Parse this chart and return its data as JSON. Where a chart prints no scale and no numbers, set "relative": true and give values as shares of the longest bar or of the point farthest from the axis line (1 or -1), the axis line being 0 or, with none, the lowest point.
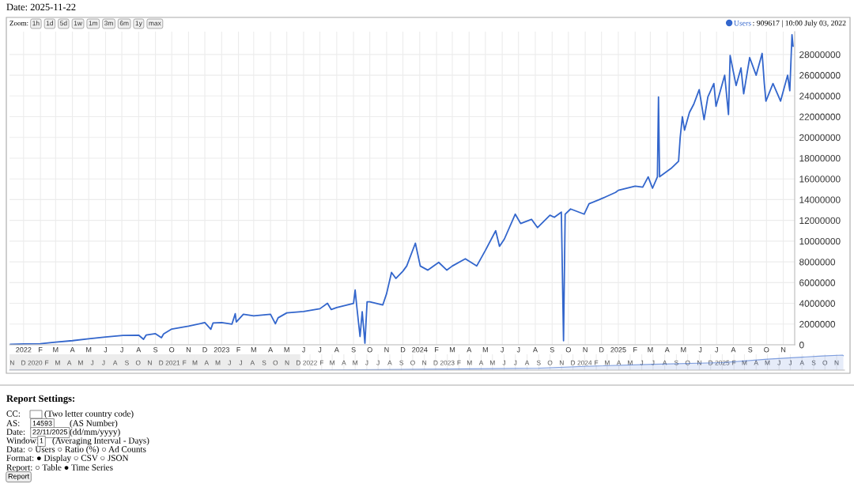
{
  "chart_data": [
    {
      "type": "line",
      "title": "Date: 2025-11-22",
      "x": [
        "2021-12-08",
        "2022-01-01",
        "2022-02-01",
        "2022-03-01",
        "2022-04-01",
        "2022-05-01",
        "2022-06-01",
        "2022-07-03",
        "2022-08-01",
        "2022-08-10",
        "2022-08-15",
        "2022-09-01",
        "2022-09-12",
        "2022-09-16",
        "2022-10-01",
        "2022-11-01",
        "2022-12-01",
        "2022-12-12",
        "2022-12-16",
        "2023-01-01",
        "2023-01-20",
        "2023-01-26",
        "2023-01-28",
        "2023-02-10",
        "2023-03-01",
        "2023-04-01",
        "2023-04-10",
        "2023-04-15",
        "2023-05-01",
        "2023-06-01",
        "2023-07-01",
        "2023-07-15",
        "2023-07-22",
        "2023-08-01",
        "2023-09-01",
        "2023-09-04",
        "2023-09-07",
        "2023-09-13",
        "2023-09-17",
        "2023-09-22",
        "2023-09-26",
        "2023-10-01",
        "2023-10-25",
        "2023-11-01",
        "2023-11-10",
        "2023-11-18",
        "2023-12-01",
        "2023-12-08",
        "2023-12-24",
        "2024-01-02",
        "2024-01-16",
        "2024-02-05",
        "2024-02-20",
        "2024-03-01",
        "2024-03-25",
        "2024-04-15",
        "2024-05-01",
        "2024-05-20",
        "2024-05-27",
        "2024-06-05",
        "2024-06-25",
        "2024-07-05",
        "2024-07-25",
        "2024-08-05",
        "2024-08-28",
        "2024-09-05",
        "2024-09-18",
        "2024-09-22",
        "2024-09-25",
        "2024-10-05",
        "2024-10-30",
        "2024-11-08",
        "2024-11-27",
        "2024-12-10",
        "2024-12-27",
        "2025-01-01",
        "2025-02-01",
        "2025-02-15",
        "2025-02-25",
        "2025-03-05",
        "2025-03-14",
        "2025-03-16",
        "2025-03-18",
        "2025-04-08",
        "2025-04-22",
        "2025-04-25",
        "2025-04-29",
        "2025-05-03",
        "2025-05-12",
        "2025-05-20",
        "2025-05-30",
        "2025-06-08",
        "2025-06-15",
        "2025-06-26",
        "2025-06-30",
        "2025-07-16",
        "2025-07-23",
        "2025-07-26",
        "2025-08-06",
        "2025-08-15",
        "2025-08-20",
        "2025-08-31",
        "2025-09-12",
        "2025-09-23",
        "2025-09-27",
        "2025-09-30",
        "2025-10-13",
        "2025-10-27",
        "2025-11-09",
        "2025-11-13",
        "2025-11-17",
        "2025-11-19"
      ],
      "series": [
        {
          "name": "Users",
          "color": "#3366cc",
          "values": [
            50000,
            80000,
            100000,
            260000,
            400000,
            580000,
            750000,
            909617,
            930000,
            530000,
            950000,
            1070000,
            680000,
            1050000,
            1520000,
            1800000,
            2140000,
            1500000,
            2100000,
            2140000,
            2000000,
            3000000,
            2200000,
            2950000,
            2800000,
            2940000,
            2030000,
            2600000,
            3080000,
            3220000,
            3480000,
            4000000,
            3400000,
            3600000,
            4000000,
            5280000,
            3700000,
            800000,
            3200000,
            150000,
            4150000,
            4150000,
            3850000,
            4950000,
            6980000,
            6400000,
            7100000,
            7600000,
            9800000,
            7600000,
            7200000,
            7950000,
            7200000,
            7600000,
            8300000,
            7600000,
            9100000,
            11000000,
            9500000,
            10200000,
            12600000,
            11700000,
            12100000,
            11300000,
            12500000,
            12300000,
            12800000,
            400000,
            12600000,
            13100000,
            12600000,
            13600000,
            14000000,
            14300000,
            14700000,
            14900000,
            15300000,
            15200000,
            16200000,
            15100000,
            16200000,
            23900000,
            16200000,
            17000000,
            17700000,
            20000000,
            22000000,
            20700000,
            22400000,
            23200000,
            24600000,
            21700000,
            23900000,
            25200000,
            23000000,
            26000000,
            22200000,
            27900000,
            25000000,
            26700000,
            24200000,
            27700000,
            26000000,
            28100000,
            25200000,
            23500000,
            25200000,
            23500000,
            26000000,
            24500000,
            29900000,
            28800000
          ]
        }
      ],
      "xlim": [
        "2021-12-06",
        "2025-11-22"
      ],
      "ylim": [
        0,
        30200000
      ],
      "yticks": [
        0,
        2000000,
        4000000,
        6000000,
        8000000,
        10000000,
        12000000,
        14000000,
        16000000,
        18000000,
        20000000,
        22000000,
        24000000,
        26000000,
        28000000
      ],
      "xticks": [
        {
          "value": "2022-01-01",
          "label": "2022"
        },
        {
          "value": "2022-02-01",
          "label": "F"
        },
        {
          "value": "2022-03-01",
          "label": "M"
        },
        {
          "value": "2022-04-01",
          "label": "A"
        },
        {
          "value": "2022-05-01",
          "label": "M"
        },
        {
          "value": "2022-06-01",
          "label": "J"
        },
        {
          "value": "2022-07-01",
          "label": "J"
        },
        {
          "value": "2022-08-01",
          "label": "A"
        },
        {
          "value": "2022-09-01",
          "label": "S"
        },
        {
          "value": "2022-10-01",
          "label": "O"
        },
        {
          "value": "2022-11-01",
          "label": "N"
        },
        {
          "value": "2022-12-01",
          "label": "D"
        },
        {
          "value": "2023-01-01",
          "label": "2023"
        },
        {
          "value": "2023-02-01",
          "label": "F"
        },
        {
          "value": "2023-03-01",
          "label": "M"
        },
        {
          "value": "2023-04-01",
          "label": "A"
        },
        {
          "value": "2023-05-01",
          "label": "M"
        },
        {
          "value": "2023-06-01",
          "label": "J"
        },
        {
          "value": "2023-07-01",
          "label": "J"
        },
        {
          "value": "2023-08-01",
          "label": "A"
        },
        {
          "value": "2023-09-01",
          "label": "S"
        },
        {
          "value": "2023-10-01",
          "label": "O"
        },
        {
          "value": "2023-11-01",
          "label": "N"
        },
        {
          "value": "2023-12-01",
          "label": "D"
        },
        {
          "value": "2024-01-01",
          "label": "2024"
        },
        {
          "value": "2024-02-01",
          "label": "F"
        },
        {
          "value": "2024-03-01",
          "label": "M"
        },
        {
          "value": "2024-04-01",
          "label": "A"
        },
        {
          "value": "2024-05-01",
          "label": "M"
        },
        {
          "value": "2024-06-01",
          "label": "J"
        },
        {
          "value": "2024-07-01",
          "label": "J"
        },
        {
          "value": "2024-08-01",
          "label": "A"
        },
        {
          "value": "2024-09-01",
          "label": "S"
        },
        {
          "value": "2024-10-01",
          "label": "O"
        },
        {
          "value": "2024-11-01",
          "label": "N"
        },
        {
          "value": "2024-12-01",
          "label": "D"
        },
        {
          "value": "2025-01-01",
          "label": "2025"
        },
        {
          "value": "2025-02-01",
          "label": "F"
        },
        {
          "value": "2025-03-01",
          "label": "M"
        },
        {
          "value": "2025-04-01",
          "label": "A"
        },
        {
          "value": "2025-05-01",
          "label": "M"
        },
        {
          "value": "2025-06-01",
          "label": "J"
        },
        {
          "value": "2025-07-01",
          "label": "J"
        },
        {
          "value": "2025-08-01",
          "label": "A"
        },
        {
          "value": "2025-09-01",
          "label": "S"
        },
        {
          "value": "2025-10-01",
          "label": "O"
        },
        {
          "value": "2025-11-01",
          "label": "N"
        }
      ],
      "grid": true,
      "legend": "top right",
      "annotations": [
        ": 909617 | 10:00 July 03, 2022",
        "Zoom:",
        "1h",
        "1d",
        "5d",
        "1w",
        "1m",
        "3m",
        "6m",
        "1y",
        "max",
        "Report Settings:",
        "CC:",
        "(Two letter country code)",
        "AS:",
        "14593",
        "(AS Number)",
        "Date:",
        "22/11/2025",
        "(dd/mm/yyyy)",
        "Window:",
        "1",
        "(Averaging Interval - Days)",
        "Data: ○ Users ○ Ratio (%) ○ Ad Counts",
        "Format: ● Display ○ CSV ○ JSON",
        "Report: ○ Table ● Time Series",
        "Report"
      ]
    },
    {
      "type": "area",
      "relative": true,
      "tick_labels": "x",
      "grid": "x",
      "x": [
        "2019-10-25",
        "2020-06-01",
        "2021-01-01",
        "2021-12-08",
        "2022-07-01",
        "2023-01-01",
        "2023-09-01",
        "2024-01-01",
        "2024-07-01",
        "2025-01-01",
        "2025-05-01",
        "2025-09-23",
        "2025-11-17",
        "2025-11-19"
      ],
      "series": [
        {
          "color": "#3366cc",
          "values": [
            0.002,
            0.002,
            0.002,
            0.002,
            0.03,
            0.07,
            0.13,
            0.25,
            0.39,
            0.5,
            0.73,
            0.94,
            1,
            0.96
          ]
        }
      ],
      "xlim": [
        "2019-10-25",
        "2025-11-22"
      ],
      "bands": [
        {
          "axis": "x",
          "from": "2019-10-25",
          "to": "2021-12-06",
          "color": "#ececec"
        }
      ],
      "xticks": [
        {
          "value": "2019-11-01",
          "label": "N"
        },
        {
          "value": "2019-12-01",
          "label": "D"
        },
        {
          "value": "2020-01-01",
          "label": "2020"
        },
        {
          "value": "2020-02-01",
          "label": "F"
        },
        {
          "value": "2020-03-01",
          "label": "M"
        },
        {
          "value": "2020-04-01",
          "label": "A"
        },
        {
          "value": "2020-05-01",
          "label": "M"
        },
        {
          "value": "2020-06-01",
          "label": "J"
        },
        {
          "value": "2020-07-01",
          "label": "J"
        },
        {
          "value": "2020-08-01",
          "label": "A"
        },
        {
          "value": "2020-09-01",
          "label": "S"
        },
        {
          "value": "2020-10-01",
          "label": "O"
        },
        {
          "value": "2020-11-01",
          "label": "N"
        },
        {
          "value": "2020-12-01",
          "label": "D"
        },
        {
          "value": "2021-01-01",
          "label": "2021"
        },
        {
          "value": "2021-02-01",
          "label": "F"
        },
        {
          "value": "2021-03-01",
          "label": "M"
        },
        {
          "value": "2021-04-01",
          "label": "A"
        },
        {
          "value": "2021-05-01",
          "label": "M"
        },
        {
          "value": "2021-06-01",
          "label": "J"
        },
        {
          "value": "2021-07-01",
          "label": "J"
        },
        {
          "value": "2021-08-01",
          "label": "A"
        },
        {
          "value": "2021-09-01",
          "label": "S"
        },
        {
          "value": "2021-10-01",
          "label": "O"
        },
        {
          "value": "2021-11-01",
          "label": "N"
        },
        {
          "value": "2021-12-01",
          "label": "D"
        },
        {
          "value": "2022-01-01",
          "label": "2022"
        },
        {
          "value": "2022-02-01",
          "label": "F"
        },
        {
          "value": "2022-03-01",
          "label": "M"
        },
        {
          "value": "2022-04-01",
          "label": "A"
        },
        {
          "value": "2022-05-01",
          "label": "M"
        },
        {
          "value": "2022-06-01",
          "label": "J"
        },
        {
          "value": "2022-07-01",
          "label": "J"
        },
        {
          "value": "2022-08-01",
          "label": "A"
        },
        {
          "value": "2022-09-01",
          "label": "S"
        },
        {
          "value": "2022-10-01",
          "label": "O"
        },
        {
          "value": "2022-11-01",
          "label": "N"
        },
        {
          "value": "2022-12-01",
          "label": "D"
        },
        {
          "value": "2023-01-01",
          "label": "2023"
        },
        {
          "value": "2023-02-01",
          "label": "F"
        },
        {
          "value": "2023-03-01",
          "label": "M"
        },
        {
          "value": "2023-04-01",
          "label": "A"
        },
        {
          "value": "2023-05-01",
          "label": "M"
        },
        {
          "value": "2023-06-01",
          "label": "J"
        },
        {
          "value": "2023-07-01",
          "label": "J"
        },
        {
          "value": "2023-08-01",
          "label": "A"
        },
        {
          "value": "2023-09-01",
          "label": "S"
        },
        {
          "value": "2023-10-01",
          "label": "O"
        },
        {
          "value": "2023-11-01",
          "label": "N"
        },
        {
          "value": "2023-12-01",
          "label": "D"
        },
        {
          "value": "2024-01-01",
          "label": "2024"
        },
        {
          "value": "2024-02-01",
          "label": "F"
        },
        {
          "value": "2024-03-01",
          "label": "M"
        },
        {
          "value": "2024-04-01",
          "label": "A"
        },
        {
          "value": "2024-05-01",
          "label": "M"
        },
        {
          "value": "2024-06-01",
          "label": "J"
        },
        {
          "value": "2024-07-01",
          "label": "J"
        },
        {
          "value": "2024-08-01",
          "label": "A"
        },
        {
          "value": "2024-09-01",
          "label": "S"
        },
        {
          "value": "2024-10-01",
          "label": "O"
        },
        {
          "value": "2024-11-01",
          "label": "N"
        },
        {
          "value": "2024-12-01",
          "label": "D"
        },
        {
          "value": "2025-01-01",
          "label": "2025"
        },
        {
          "value": "2025-02-01",
          "label": "F"
        },
        {
          "value": "2025-03-01",
          "label": "M"
        },
        {
          "value": "2025-04-01",
          "label": "A"
        },
        {
          "value": "2025-05-01",
          "label": "M"
        },
        {
          "value": "2025-06-01",
          "label": "J"
        },
        {
          "value": "2025-07-01",
          "label": "J"
        },
        {
          "value": "2025-08-01",
          "label": "A"
        },
        {
          "value": "2025-09-01",
          "label": "S"
        },
        {
          "value": "2025-10-01",
          "label": "O"
        },
        {
          "value": "2025-11-01",
          "label": "N"
        }
      ]
    }
  ]
}
